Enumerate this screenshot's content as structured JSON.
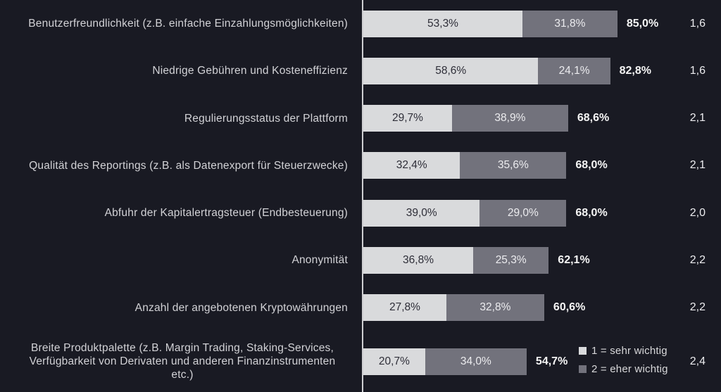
{
  "chart_data": {
    "type": "bar",
    "orientation": "horizontal",
    "stacked": true,
    "title": "",
    "xlabel": "",
    "ylabel": "",
    "xlim": [
      0,
      100
    ],
    "grid": false,
    "legend_position": "bottom-right",
    "number_format": "German decimal comma, one decimal place, percent suffix on segments and totals",
    "categories": [
      "Benutzerfreundlichkeit (z.B. einfache Einzahlungsmöglichkeiten)",
      "Niedrige Gebühren und Kosteneffizienz",
      "Regulierungsstatus der Plattform",
      "Qualität des Reportings (z.B. als Datenexport für Steuerzwecke)",
      "Abfuhr der Kapitalertragsteuer (Endbesteuerung)",
      "Anonymität",
      "Anzahl der angebotenen Kryptowährungen",
      "Breite Produktpalette (z.B. Margin Trading, Staking-Services, Verfügbarkeit von Derivaten und anderen Finanzinstrumenten etc.)"
    ],
    "series": [
      {
        "name": "1 = sehr wichtig",
        "color": "#d9dadc",
        "values": [
          53.3,
          58.6,
          29.7,
          32.4,
          39.0,
          36.8,
          27.8,
          20.7
        ]
      },
      {
        "name": "2 = eher wichtig",
        "color": "#72727c",
        "values": [
          31.8,
          24.1,
          38.9,
          35.6,
          29.0,
          25.3,
          32.8,
          34.0
        ]
      }
    ],
    "totals": [
      85.0,
      82.8,
      68.6,
      68.0,
      68.0,
      62.1,
      60.6,
      54.7
    ],
    "means": [
      1.6,
      1.6,
      2.1,
      2.1,
      2.0,
      2.2,
      2.2,
      2.4
    ],
    "colors": {
      "background": "#191a23",
      "axis_line": "#cfcfd2",
      "category_text": "#d2d2d6",
      "segment1_text": "#2e2e38",
      "segment2_text": "#ececef",
      "total_text": "#f5f5f5",
      "mean_text": "#ececef"
    }
  }
}
